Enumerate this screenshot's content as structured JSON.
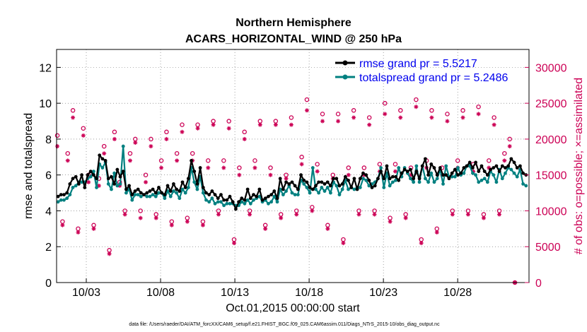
{
  "chart_data": {
    "type": "line",
    "title": "Northern Hemisphere",
    "subtitle": "ACARS_HORIZONTAL_WIND @ 250 hPa",
    "xlabel": "Oct.01,2015 00:00:00 start",
    "ylabel": "rmse and totalspread",
    "y2label": "# of obs: o=possible; ×=assimilated",
    "xlim": [
      1,
      32.8
    ],
    "ylim": [
      0,
      13
    ],
    "y2lim": [
      0,
      32500
    ],
    "x_tick_values": [
      3,
      8,
      13,
      18,
      23,
      28
    ],
    "x_tick_labels": [
      "10/03",
      "10/08",
      "10/13",
      "10/18",
      "10/23",
      "10/28"
    ],
    "y_ticks": [
      0,
      2,
      4,
      6,
      8,
      10,
      12
    ],
    "y2_ticks": [
      0,
      5000,
      10000,
      15000,
      20000,
      25000,
      30000
    ],
    "legend_position": "top-right",
    "footer": "data file: /Users/raeder/DAI/ATM_forcXX/CAM6_setup/f.e21.FHIST_BGC.f09_025.CAM6assim.011/Diags_NTrS_2015-10/obs_diag_output.nc",
    "colors": {
      "rmse": "#000000",
      "spread": "#008080",
      "counts": "#cc0055",
      "legend_text": "#0000ee"
    },
    "series": [
      {
        "name": "rmse grand pr = 5.5217",
        "values": [
          4.8,
          4.9,
          4.9,
          5.0,
          5.5,
          5.8,
          5.9,
          5.5,
          6.0,
          5.3,
          6.0,
          6.2,
          6.0,
          5.8,
          7.1,
          6.9,
          6.8,
          5.8,
          5.9,
          5.5,
          6.3,
          5.9,
          6.2,
          5.2,
          5.4,
          4.9,
          5.1,
          5.2,
          5.0,
          4.9,
          5.0,
          5.1,
          5.2,
          5.0,
          5.3,
          5.0,
          4.9,
          5.4,
          5.1,
          5.5,
          5.2,
          5.1,
          5.6,
          5.3,
          5.8,
          6.8,
          6.2,
          5.5,
          6.4,
          5.3,
          5.0,
          4.9,
          5.1,
          4.9,
          4.7,
          4.9,
          4.6,
          4.6,
          4.8,
          4.5,
          4.1,
          4.5,
          4.7,
          4.6,
          5.2,
          4.7,
          4.9,
          4.8,
          5.2,
          4.6,
          4.7,
          4.8,
          4.9,
          5.1,
          4.7,
          5.8,
          5.2,
          5.6,
          5.5,
          5.6,
          5.4,
          5.2,
          6.0,
          5.7,
          5.6,
          5.3,
          5.2,
          5.4,
          5.6,
          5.6,
          5.5,
          5.6,
          5.4,
          5.8,
          5.8,
          5.4,
          5.5,
          5.9,
          5.7,
          5.3,
          5.8,
          5.2,
          5.8,
          6.1,
          6.0,
          5.7,
          5.3,
          5.4,
          5.8,
          6.2,
          5.8,
          6.5,
          5.8,
          5.9,
          5.9,
          5.7,
          6.1,
          6.3,
          6.2,
          6.3,
          5.8,
          6.2,
          5.8,
          6.5,
          6.9,
          6.0,
          6.6,
          6.4,
          6.0,
          6.4,
          6.0,
          6.0,
          5.8,
          6.1,
          6.3,
          6.0,
          6.1,
          6.4,
          6.5,
          6.7,
          6.4,
          6.7,
          6.2,
          6.5,
          6.2,
          6.0,
          6.3,
          6.4,
          6.5,
          6.2,
          6.5,
          6.4,
          6.5,
          6.9,
          6.7,
          6.4,
          6.5,
          6.1,
          6.0
        ]
      },
      {
        "name": "totalspread grand pr = 5.2486",
        "values": [
          4.5,
          4.6,
          4.6,
          4.7,
          4.9,
          5.3,
          5.4,
          5.6,
          5.6,
          5.6,
          5.8,
          5.9,
          6.2,
          5.3,
          6.6,
          6.4,
          6.7,
          5.5,
          5.2,
          6.1,
          5.4,
          5.5,
          7.6,
          5.0,
          5.2,
          4.6,
          4.9,
          4.9,
          4.8,
          4.9,
          4.8,
          4.8,
          4.9,
          4.8,
          5.0,
          5.0,
          4.7,
          5.1,
          4.8,
          5.1,
          5.0,
          4.7,
          5.2,
          5.0,
          5.3,
          6.4,
          5.6,
          5.2,
          5.9,
          5.0,
          4.6,
          4.5,
          4.7,
          4.4,
          4.5,
          4.5,
          4.3,
          4.4,
          4.4,
          4.4,
          4.3,
          4.3,
          4.5,
          4.4,
          4.6,
          4.4,
          4.6,
          4.7,
          4.8,
          4.5,
          4.6,
          4.4,
          4.5,
          4.8,
          4.5,
          5.2,
          4.9,
          5.1,
          5.4,
          5.0,
          4.9,
          4.9,
          5.7,
          5.5,
          5.3,
          5.0,
          6.4,
          5.2,
          5.0,
          5.3,
          5.1,
          5.3,
          5.0,
          5.6,
          5.4,
          4.9,
          5.2,
          5.7,
          5.2,
          5.3,
          5.2,
          5.3,
          5.3,
          5.8,
          5.7,
          5.4,
          5.5,
          5.6,
          5.8,
          6.4,
          5.3,
          6.1,
          5.4,
          5.6,
          5.7,
          6.4,
          5.9,
          6.4,
          6.1,
          5.8,
          5.6,
          6.5,
          5.6,
          6.5,
          5.8,
          5.6,
          6.1,
          5.6,
          5.8,
          6.3,
          5.5,
          6.5,
          5.9,
          5.9,
          5.9,
          6.4,
          6.0,
          6.1,
          6.5,
          6.5,
          6.1,
          6.0,
          5.6,
          5.7,
          5.8,
          5.6,
          6.2,
          6.0,
          5.6,
          6.3,
          5.8,
          6.1,
          6.4,
          6.3,
          6.1,
          5.9,
          6.3,
          5.5,
          5.4
        ]
      }
    ],
    "count_pairs": [
      [
        19000,
        20500
      ],
      [
        8000,
        8500
      ],
      [
        17000,
        18000
      ],
      [
        23000,
        24000
      ],
      [
        7000,
        7500
      ],
      [
        20500,
        21500
      ],
      [
        14000,
        15000
      ],
      [
        7500,
        8000
      ],
      [
        13500,
        14500
      ],
      [
        18000,
        19000
      ],
      [
        4000,
        4500
      ],
      [
        20000,
        21000
      ],
      [
        13500,
        14000
      ],
      [
        9500,
        10000
      ],
      [
        17000,
        18000
      ],
      [
        19500,
        20000
      ],
      [
        9000,
        10000
      ],
      [
        14000,
        15000
      ],
      [
        19000,
        20000
      ],
      [
        9000,
        9500
      ],
      [
        16000,
        17000
      ],
      [
        20000,
        21000
      ],
      [
        8000,
        8500
      ],
      [
        17000,
        18000
      ],
      [
        21000,
        22000
      ],
      [
        8500,
        9000
      ],
      [
        17000,
        18000
      ],
      [
        21500,
        22000
      ],
      [
        8000,
        8500
      ],
      [
        16000,
        17000
      ],
      [
        22000,
        22500
      ],
      [
        9500,
        10000
      ],
      [
        16000,
        17000
      ],
      [
        21500,
        22500
      ],
      [
        5500,
        6000
      ],
      [
        15000,
        16000
      ],
      [
        20000,
        21000
      ],
      [
        9500,
        10000
      ],
      [
        16000,
        17000
      ],
      [
        22000,
        22500
      ],
      [
        7500,
        8000
      ],
      [
        15000,
        16000
      ],
      [
        22000,
        22500
      ],
      [
        9000,
        9500
      ],
      [
        14500,
        15000
      ],
      [
        22000,
        23000
      ],
      [
        9500,
        10000
      ],
      [
        16500,
        17500
      ],
      [
        24000,
        25500
      ],
      [
        10000,
        10500
      ],
      [
        15500,
        16500
      ],
      [
        22500,
        23500
      ],
      [
        7500,
        8000
      ],
      [
        14500,
        15000
      ],
      [
        22500,
        23500
      ],
      [
        5500,
        6000
      ],
      [
        15000,
        16000
      ],
      [
        23000,
        24000
      ],
      [
        9500,
        10000
      ],
      [
        15000,
        16000
      ],
      [
        22000,
        23000
      ],
      [
        9500,
        10000
      ],
      [
        15500,
        16500
      ],
      [
        23500,
        25000
      ],
      [
        8500,
        9000
      ],
      [
        15500,
        16500
      ],
      [
        23000,
        24000
      ],
      [
        9000,
        9500
      ],
      [
        15000,
        16000
      ],
      [
        24500,
        25500
      ],
      [
        5500,
        6000
      ],
      [
        16000,
        17000
      ],
      [
        23000,
        24000
      ],
      [
        7000,
        7500
      ],
      [
        15000,
        16000
      ],
      [
        22500,
        23500
      ],
      [
        9500,
        10000
      ],
      [
        16000,
        17000
      ],
      [
        23000,
        24000
      ],
      [
        9500,
        10000
      ],
      [
        15500,
        16500
      ],
      [
        23500,
        24500
      ],
      [
        9000,
        9500
      ],
      [
        16000,
        17000
      ],
      [
        22000,
        23000
      ],
      [
        9500,
        10000
      ],
      [
        17000,
        18000
      ],
      [
        19000,
        20000
      ],
      [
        0,
        0
      ]
    ],
    "count_x_start": 1.05,
    "count_x_step": 0.35
  }
}
